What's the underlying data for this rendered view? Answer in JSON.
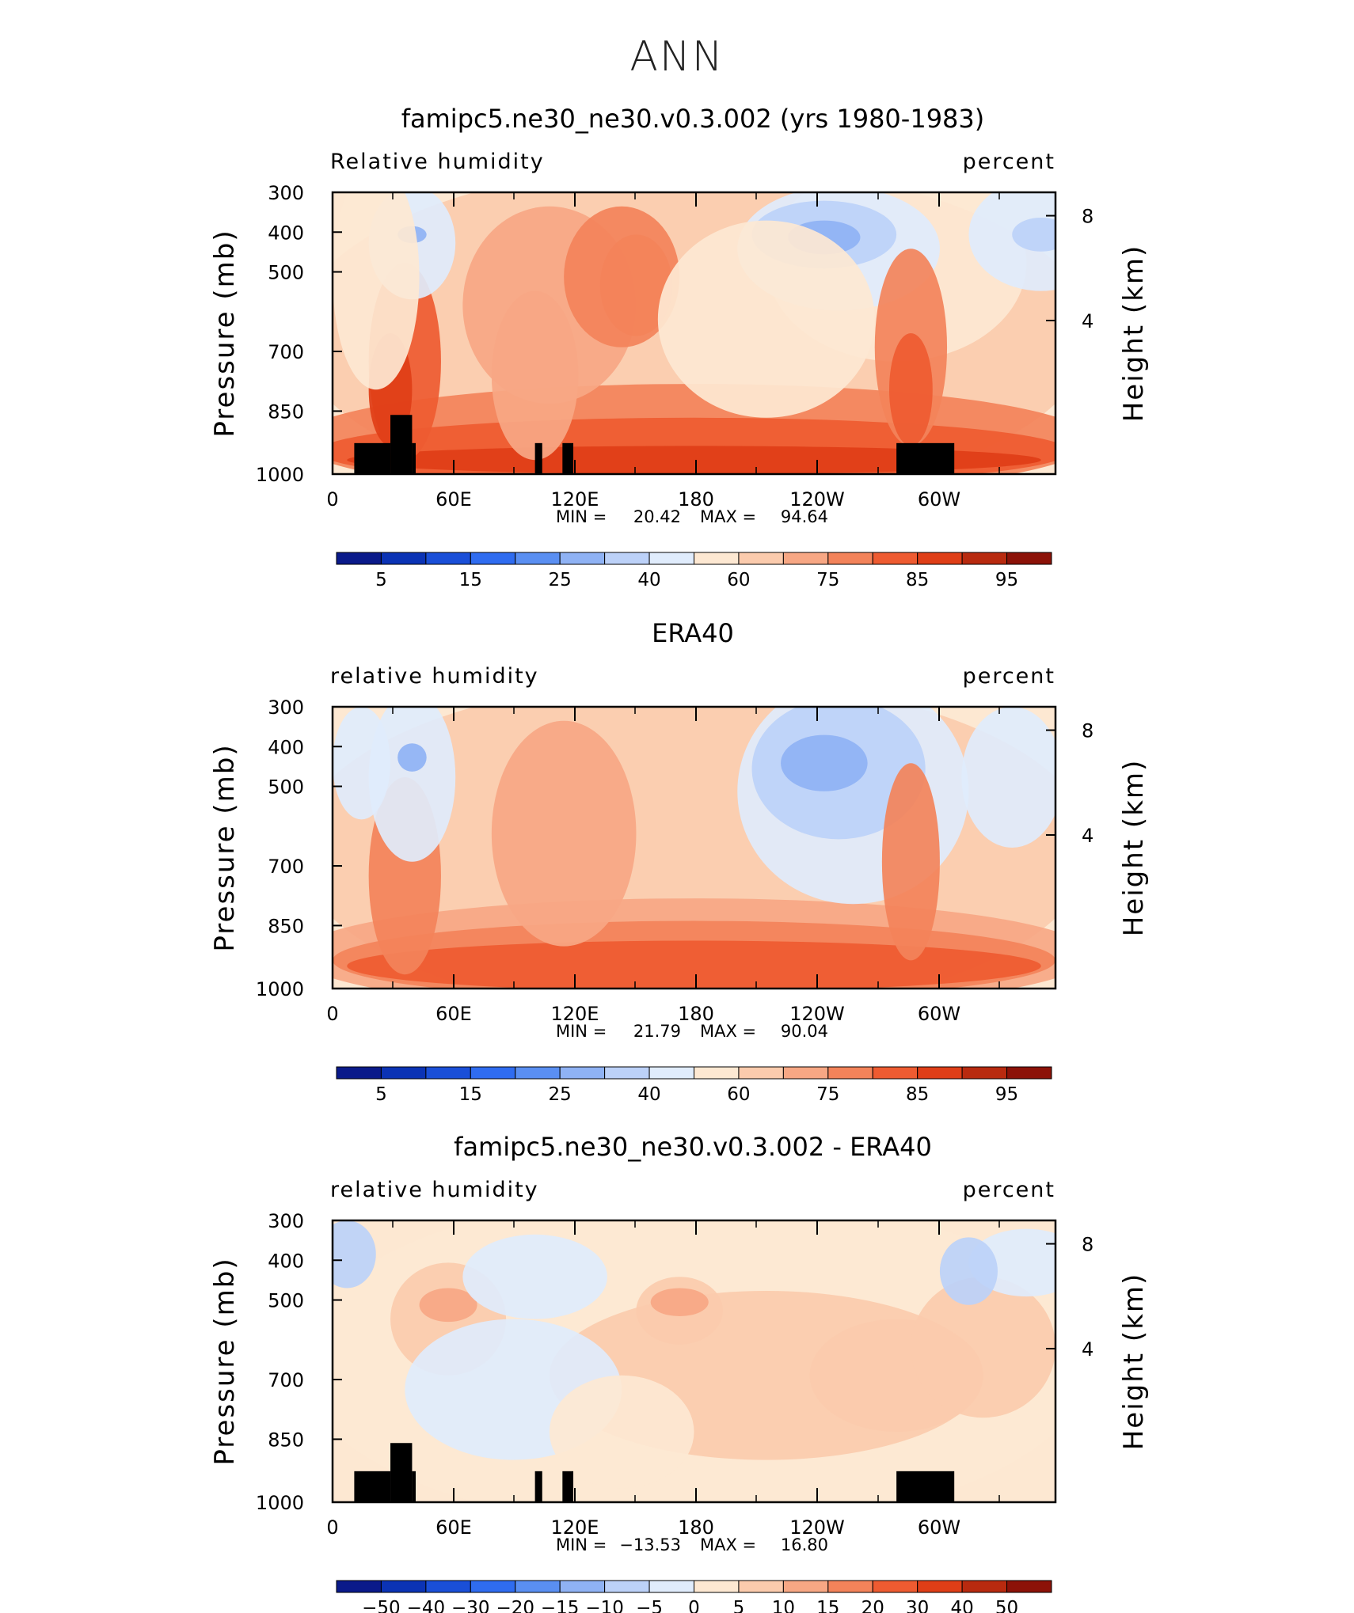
{
  "figure_title": "ANN",
  "chart_data": [
    {
      "type": "heatmap",
      "title": "famipc5.ne30_ne30.v0.3.002 (yrs 1980-1983)",
      "left_label": "Relative humidity",
      "right_label": "percent",
      "ylabel": "Pressure (mb)",
      "ylabel2": "Height (km)",
      "y_ticks": [
        "300",
        "400",
        "500",
        "700",
        "850",
        "1000"
      ],
      "y2_ticks": [
        "8",
        "4"
      ],
      "x_ticks": [
        "0",
        "60E",
        "120E",
        "180",
        "120W",
        "60W"
      ],
      "min_label": "MIN =",
      "min_value": "20.42",
      "max_label": "MAX =",
      "max_value": "94.64",
      "colorbar_labels": [
        "5",
        "15",
        "25",
        "40",
        "60",
        "75",
        "85",
        "95"
      ],
      "colorbar_colors": [
        "#0a1a8a",
        "#0b33b5",
        "#1a4fd8",
        "#2f6cf0",
        "#5a8ff2",
        "#8fb2f4",
        "#bcd1f8",
        "#e0ecfc",
        "#fde8d2",
        "#fbcbad",
        "#f7a784",
        "#f3835a",
        "#ee5b31",
        "#df3e17",
        "#b82a0f",
        "#8c1208"
      ]
    },
    {
      "type": "heatmap",
      "title": "ERA40",
      "left_label": "relative humidity",
      "right_label": "percent",
      "ylabel": "Pressure (mb)",
      "ylabel2": "Height (km)",
      "y_ticks": [
        "300",
        "400",
        "500",
        "700",
        "850",
        "1000"
      ],
      "y2_ticks": [
        "8",
        "4"
      ],
      "x_ticks": [
        "0",
        "60E",
        "120E",
        "180",
        "120W",
        "60W"
      ],
      "min_label": "MIN =",
      "min_value": "21.79",
      "max_label": "MAX =",
      "max_value": "90.04",
      "colorbar_labels": [
        "5",
        "15",
        "25",
        "40",
        "60",
        "75",
        "85",
        "95"
      ],
      "colorbar_colors": [
        "#0a1a8a",
        "#0b33b5",
        "#1a4fd8",
        "#2f6cf0",
        "#5a8ff2",
        "#8fb2f4",
        "#bcd1f8",
        "#e0ecfc",
        "#fde8d2",
        "#fbcbad",
        "#f7a784",
        "#f3835a",
        "#ee5b31",
        "#df3e17",
        "#b82a0f",
        "#8c1208"
      ]
    },
    {
      "type": "heatmap",
      "title": "famipc5.ne30_ne30.v0.3.002 - ERA40",
      "left_label": "relative humidity",
      "right_label": "percent",
      "ylabel": "Pressure (mb)",
      "ylabel2": "Height (km)",
      "y_ticks": [
        "300",
        "400",
        "500",
        "700",
        "850",
        "1000"
      ],
      "y2_ticks": [
        "8",
        "4"
      ],
      "x_ticks": [
        "0",
        "60E",
        "120E",
        "180",
        "120W",
        "60W"
      ],
      "min_label": "MIN =",
      "min_value": "−13.53",
      "max_label": "MAX =",
      "max_value": "16.80",
      "colorbar_labels": [
        "−50",
        "−40",
        "−30",
        "−20",
        "−15",
        "−10",
        "−5",
        "0",
        "5",
        "10",
        "15",
        "20",
        "30",
        "40",
        "50"
      ],
      "colorbar_colors": [
        "#0a1a8a",
        "#0b33b5",
        "#1a4fd8",
        "#2f6cf0",
        "#5a8ff2",
        "#8fb2f4",
        "#bcd1f8",
        "#e0ecfc",
        "#fde8d2",
        "#fbcbad",
        "#f7a784",
        "#f3835a",
        "#ee5b31",
        "#df3e17",
        "#b82a0f",
        "#8c1208"
      ]
    }
  ]
}
